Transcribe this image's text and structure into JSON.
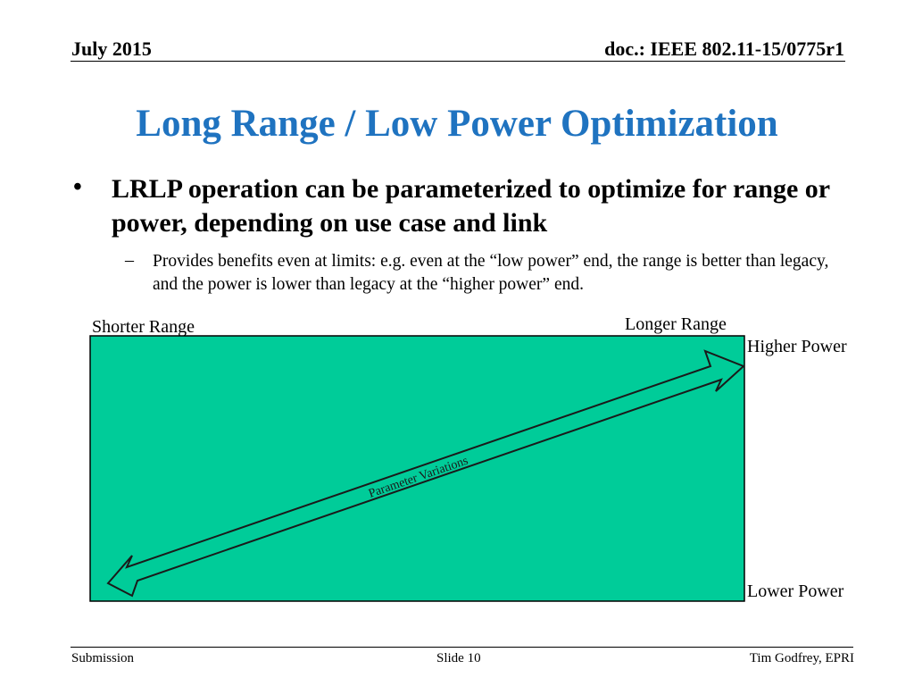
{
  "header": {
    "date": "July 2015",
    "doc": "doc.: IEEE 802.11-15/0775r1"
  },
  "title": "Long Range / Low Power Optimization",
  "bullets": [
    {
      "symbol": "•",
      "text": "LRLP operation can be parameterized to optimize for range or power, depending on use case and link",
      "sub": {
        "symbol": "–",
        "text": "Provides benefits even at limits: e.g. even at the “low power” end, the range is better than legacy, and the power is lower than legacy at the “higher power” end."
      }
    }
  ],
  "diagram": {
    "fill_color": "#00cc99",
    "labels": {
      "shorter_range": "Shorter Range",
      "longer_range": "Longer Range",
      "higher_power": "Higher Power",
      "lower_power": "Lower Power",
      "arrow": "Parameter Variations"
    }
  },
  "footer": {
    "left": "Submission",
    "center": "Slide 10",
    "right": "Tim Godfrey, EPRI"
  }
}
